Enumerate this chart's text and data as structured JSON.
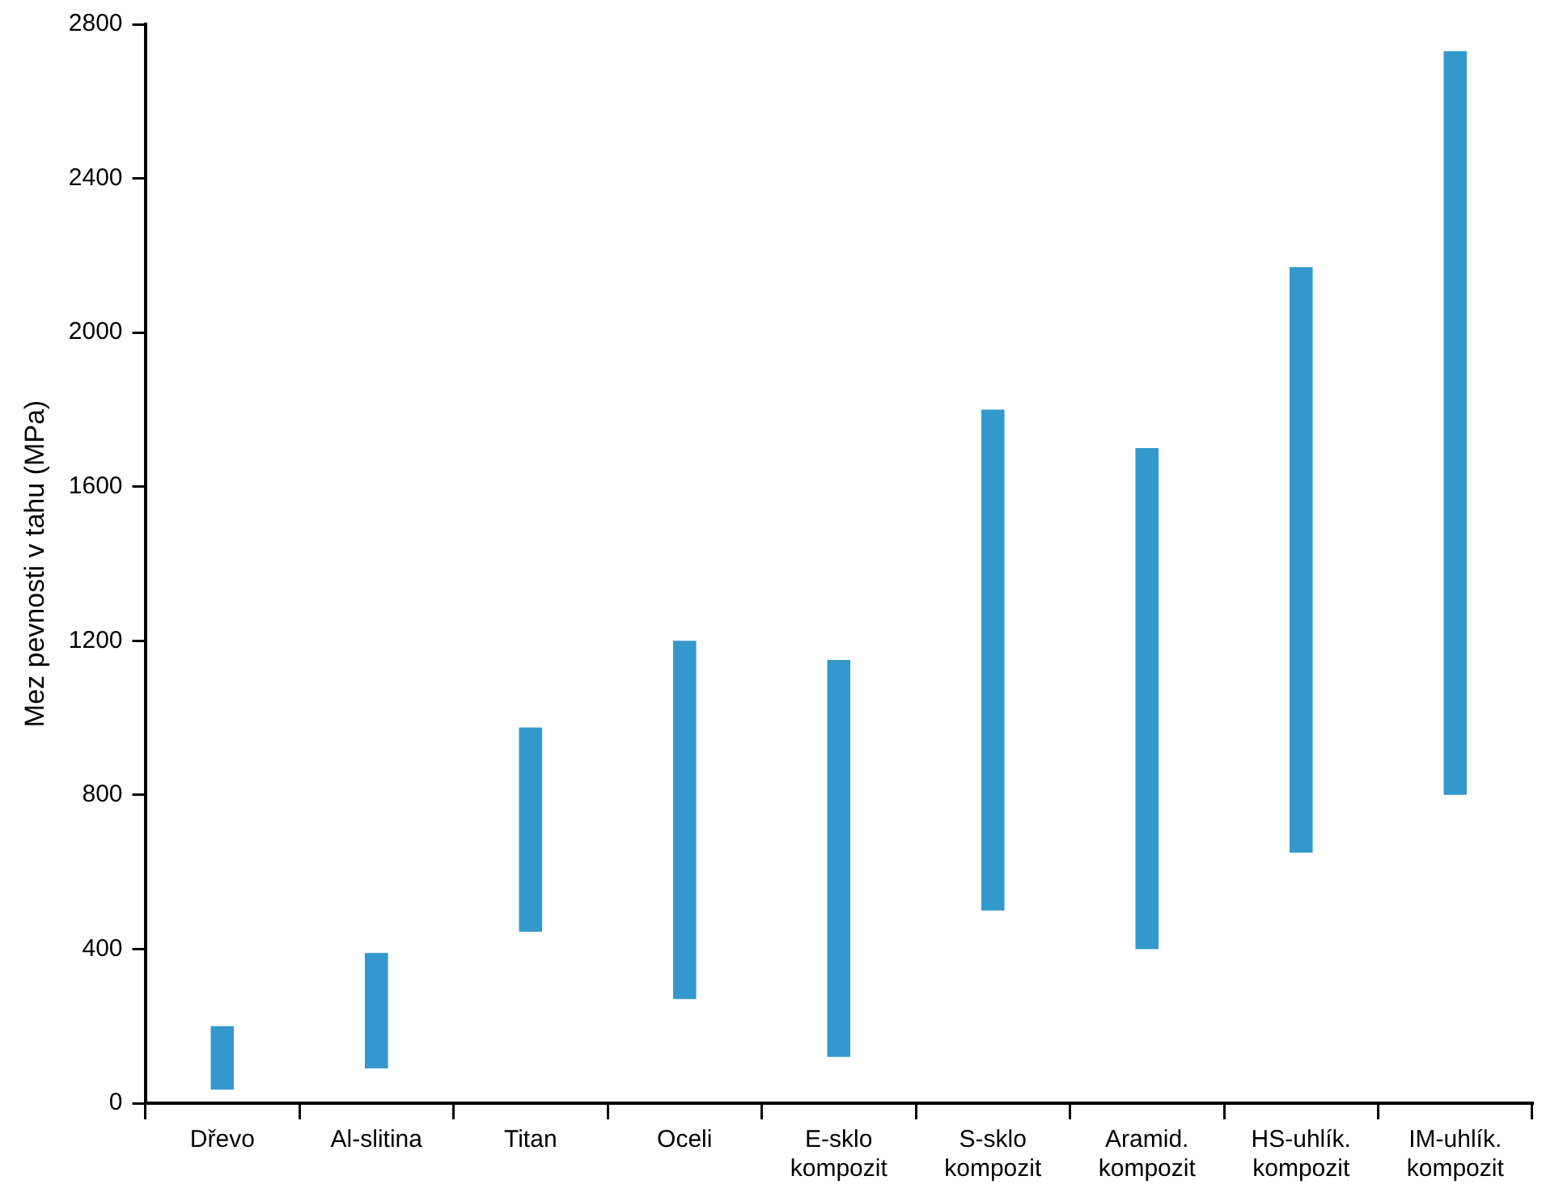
{
  "chart_data": {
    "type": "bar",
    "ylabel": "Mez pevnosti v tahu (MPa)",
    "categories": [
      "Dřevo",
      "Al-slitina",
      "Titan",
      "Oceli",
      "E-sklo kompozit",
      "S-sklo kompozit",
      "Aramid. kompozit",
      "HS-uhlík. kompozit",
      "IM-uhlík. kompozit"
    ],
    "base": [
      35,
      90,
      445,
      270,
      120,
      500,
      400,
      650,
      800
    ],
    "values": [
      165,
      300,
      530,
      930,
      1030,
      1300,
      1300,
      1520,
      1930
    ],
    "color": "#3399cc",
    "ylim": [
      0,
      2800
    ],
    "yticks": [
      0,
      400,
      800,
      1200,
      1600,
      2000,
      2400,
      2800
    ],
    "grid": false
  }
}
